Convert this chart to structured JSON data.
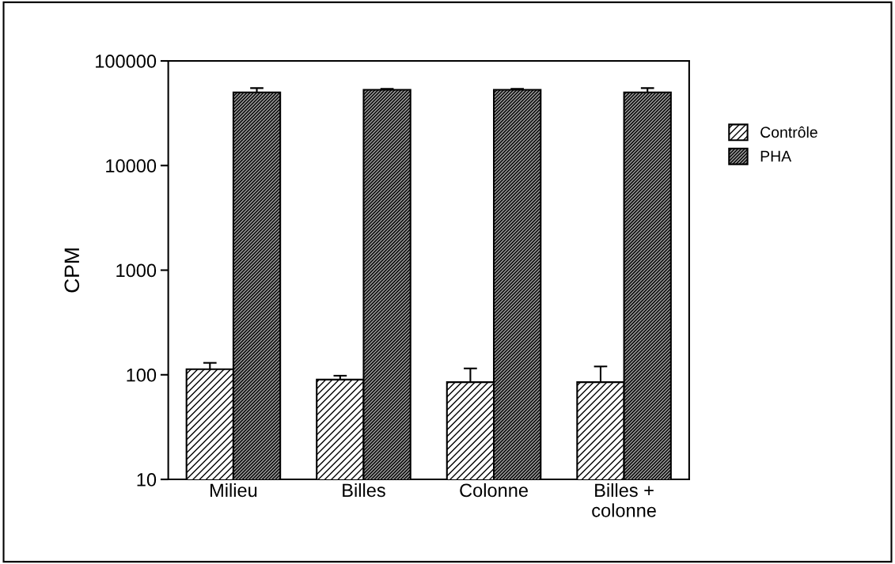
{
  "chart_data": {
    "type": "bar",
    "ylabel": "CPM",
    "categories": [
      "Milieu",
      "Billes",
      "Colonne",
      "Billes +\ncolonne"
    ],
    "series": [
      {
        "name": "Contrôle",
        "color": "#000000",
        "values": [
          113,
          90,
          85,
          85
        ],
        "errors": [
          17,
          8,
          30,
          35
        ]
      },
      {
        "name": "PHA",
        "color": "#000000",
        "values": [
          50000,
          53000,
          53000,
          50000
        ],
        "errors": [
          5000,
          1000,
          1000,
          5000
        ]
      }
    ],
    "log": true,
    "ylim": [
      10,
      100000
    ],
    "yticks": [
      10,
      100,
      1000,
      10000,
      100000
    ],
    "grid": false,
    "legend": "right"
  }
}
